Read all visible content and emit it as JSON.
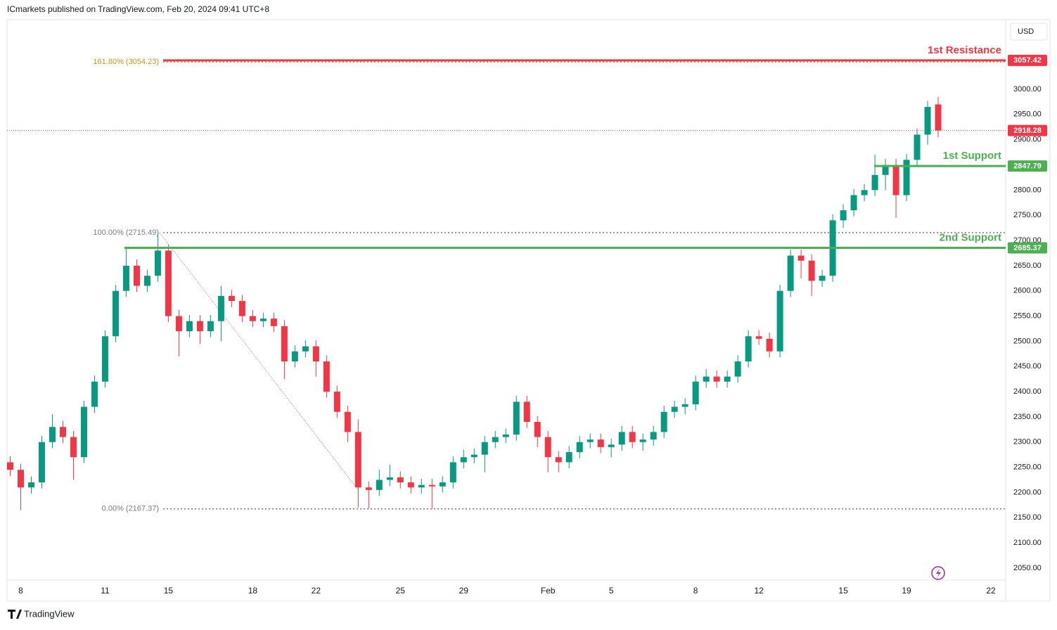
{
  "chart_data": {
    "type": "candlestick",
    "header": "ICmarkets published on TradingView.com, Feb 20, 2024 09:41 UTC+8",
    "currency": "USD",
    "brand": "TradingView",
    "up_color": "#089981",
    "down_color": "#f23645",
    "grid": false,
    "xlim": [
      -0.3,
      94.4
    ],
    "ylim": [
      2026.2,
      3138.1
    ],
    "xticks": [
      {
        "value": 1,
        "label": "8"
      },
      {
        "value": 9,
        "label": "11"
      },
      {
        "value": 15,
        "label": "15"
      },
      {
        "value": 23,
        "label": "18"
      },
      {
        "value": 29,
        "label": "22"
      },
      {
        "value": 37,
        "label": "25"
      },
      {
        "value": 43,
        "label": "29"
      },
      {
        "value": 51,
        "label": "Feb"
      },
      {
        "value": 57,
        "label": "5"
      },
      {
        "value": 65,
        "label": "8"
      },
      {
        "value": 71,
        "label": "12"
      },
      {
        "value": 79,
        "label": "15"
      },
      {
        "value": 85,
        "label": "19"
      },
      {
        "value": 93,
        "label": "22"
      }
    ],
    "yticks": [
      {
        "value": 2050,
        "label": "2050.00"
      },
      {
        "value": 2100,
        "label": "2100.00"
      },
      {
        "value": 2150,
        "label": "2150.00"
      },
      {
        "value": 2200,
        "label": "2200.00"
      },
      {
        "value": 2250,
        "label": "2250.00"
      },
      {
        "value": 2300,
        "label": "2300.00"
      },
      {
        "value": 2350,
        "label": "2350.00"
      },
      {
        "value": 2400,
        "label": "2400.00"
      },
      {
        "value": 2450,
        "label": "2450.00"
      },
      {
        "value": 2500,
        "label": "2500.00"
      },
      {
        "value": 2550,
        "label": "2550.00"
      },
      {
        "value": 2600,
        "label": "2600.00"
      },
      {
        "value": 2650,
        "label": "2650.00"
      },
      {
        "value": 2700,
        "label": "2700.00"
      },
      {
        "value": 2750,
        "label": "2750.00"
      },
      {
        "value": 2800,
        "label": "2800.00"
      },
      {
        "value": 2850,
        "label": "2850.00"
      },
      {
        "value": 2900,
        "label": "2900.00"
      },
      {
        "value": 2950,
        "label": "2950.00"
      },
      {
        "value": 3000,
        "label": "3000.00"
      }
    ],
    "candles": {
      "open": [
        2260,
        2245,
        2210,
        2220,
        2300,
        2330,
        2310,
        2270,
        2370,
        2420,
        2510,
        2600,
        2650,
        2610,
        2630,
        2680,
        2550,
        2520,
        2540,
        2520,
        2540,
        2590,
        2580,
        2550,
        2540,
        2545,
        2530,
        2460,
        2480,
        2490,
        2460,
        2400,
        2360,
        2320,
        2210,
        2205,
        2225,
        2230,
        2220,
        2210,
        2215,
        2212,
        2220,
        2260,
        2270,
        2275,
        2300,
        2310,
        2315,
        2380,
        2340,
        2310,
        2270,
        2260,
        2280,
        2300,
        2305,
        2290,
        2295,
        2320,
        2300,
        2305,
        2320,
        2360,
        2370,
        2375,
        2420,
        2430,
        2420,
        2430,
        2460,
        2510,
        2505,
        2480,
        2600,
        2670,
        2660,
        2620,
        2630,
        2740,
        2760,
        2790,
        2800,
        2830,
        2850,
        2790,
        2860,
        2910,
        2970
      ],
      "high": [
        2272,
        2257,
        2232,
        2312,
        2355,
        2342,
        2322,
        2382,
        2432,
        2522,
        2612,
        2685,
        2662,
        2642,
        2715,
        2692,
        2562,
        2552,
        2552,
        2552,
        2610,
        2602,
        2592,
        2562,
        2557,
        2557,
        2542,
        2492,
        2502,
        2502,
        2472,
        2412,
        2372,
        2345,
        2222,
        2245,
        2255,
        2242,
        2232,
        2227,
        2227,
        2232,
        2272,
        2285,
        2287,
        2312,
        2322,
        2327,
        2392,
        2392,
        2352,
        2322,
        2282,
        2292,
        2312,
        2317,
        2317,
        2307,
        2332,
        2332,
        2317,
        2332,
        2372,
        2382,
        2387,
        2432,
        2445,
        2442,
        2442,
        2472,
        2522,
        2522,
        2517,
        2612,
        2682,
        2682,
        2672,
        2642,
        2752,
        2772,
        2802,
        2812,
        2870,
        2862,
        2862,
        2872,
        2922,
        2977,
        2985
      ],
      "low": [
        2233,
        2165,
        2198,
        2208,
        2288,
        2298,
        2225,
        2258,
        2358,
        2408,
        2498,
        2588,
        2598,
        2598,
        2618,
        2538,
        2470,
        2508,
        2495,
        2508,
        2500,
        2568,
        2538,
        2528,
        2528,
        2518,
        2425,
        2448,
        2468,
        2430,
        2388,
        2348,
        2300,
        2170,
        2168,
        2193,
        2213,
        2208,
        2198,
        2198,
        2168,
        2200,
        2208,
        2248,
        2258,
        2240,
        2288,
        2298,
        2303,
        2328,
        2290,
        2240,
        2240,
        2248,
        2268,
        2288,
        2278,
        2270,
        2283,
        2288,
        2283,
        2293,
        2308,
        2348,
        2355,
        2363,
        2408,
        2408,
        2408,
        2418,
        2448,
        2493,
        2468,
        2468,
        2588,
        2625,
        2590,
        2608,
        2618,
        2725,
        2748,
        2778,
        2788,
        2800,
        2745,
        2778,
        2848,
        2890,
        2905
      ],
      "close": [
        2245,
        2210,
        2220,
        2300,
        2330,
        2310,
        2270,
        2370,
        2420,
        2510,
        2600,
        2650,
        2610,
        2630,
        2680,
        2550,
        2520,
        2540,
        2520,
        2540,
        2590,
        2580,
        2550,
        2540,
        2545,
        2530,
        2460,
        2480,
        2490,
        2460,
        2400,
        2360,
        2320,
        2210,
        2205,
        2225,
        2230,
        2220,
        2210,
        2215,
        2212,
        2220,
        2260,
        2270,
        2275,
        2300,
        2310,
        2315,
        2380,
        2340,
        2310,
        2270,
        2260,
        2280,
        2300,
        2305,
        2290,
        2295,
        2320,
        2300,
        2305,
        2320,
        2360,
        2370,
        2375,
        2420,
        2430,
        2420,
        2430,
        2460,
        2510,
        2505,
        2480,
        2600,
        2670,
        2660,
        2620,
        2630,
        2740,
        2760,
        2790,
        2800,
        2830,
        2850,
        2790,
        2860,
        2910,
        2965,
        2918.28
      ]
    },
    "levels": [
      {
        "name": "1st Resistance",
        "value": 3057.42,
        "color": "#f23645"
      },
      {
        "name": "1st Support",
        "value": 2847.79,
        "color": "#4caf50"
      },
      {
        "name": "2nd Support",
        "value": 2685.37,
        "color": "#4caf50"
      }
    ],
    "fib": [
      {
        "label": "161.80% (3054.23)",
        "value": 3054.23,
        "color": "#c89a10"
      },
      {
        "label": "100.00% (2715.49)",
        "value": 2715.49,
        "color": "#787b86"
      },
      {
        "label": "0.00% (2167.37)",
        "value": 2167.37,
        "color": "#787b86"
      }
    ]
  }
}
